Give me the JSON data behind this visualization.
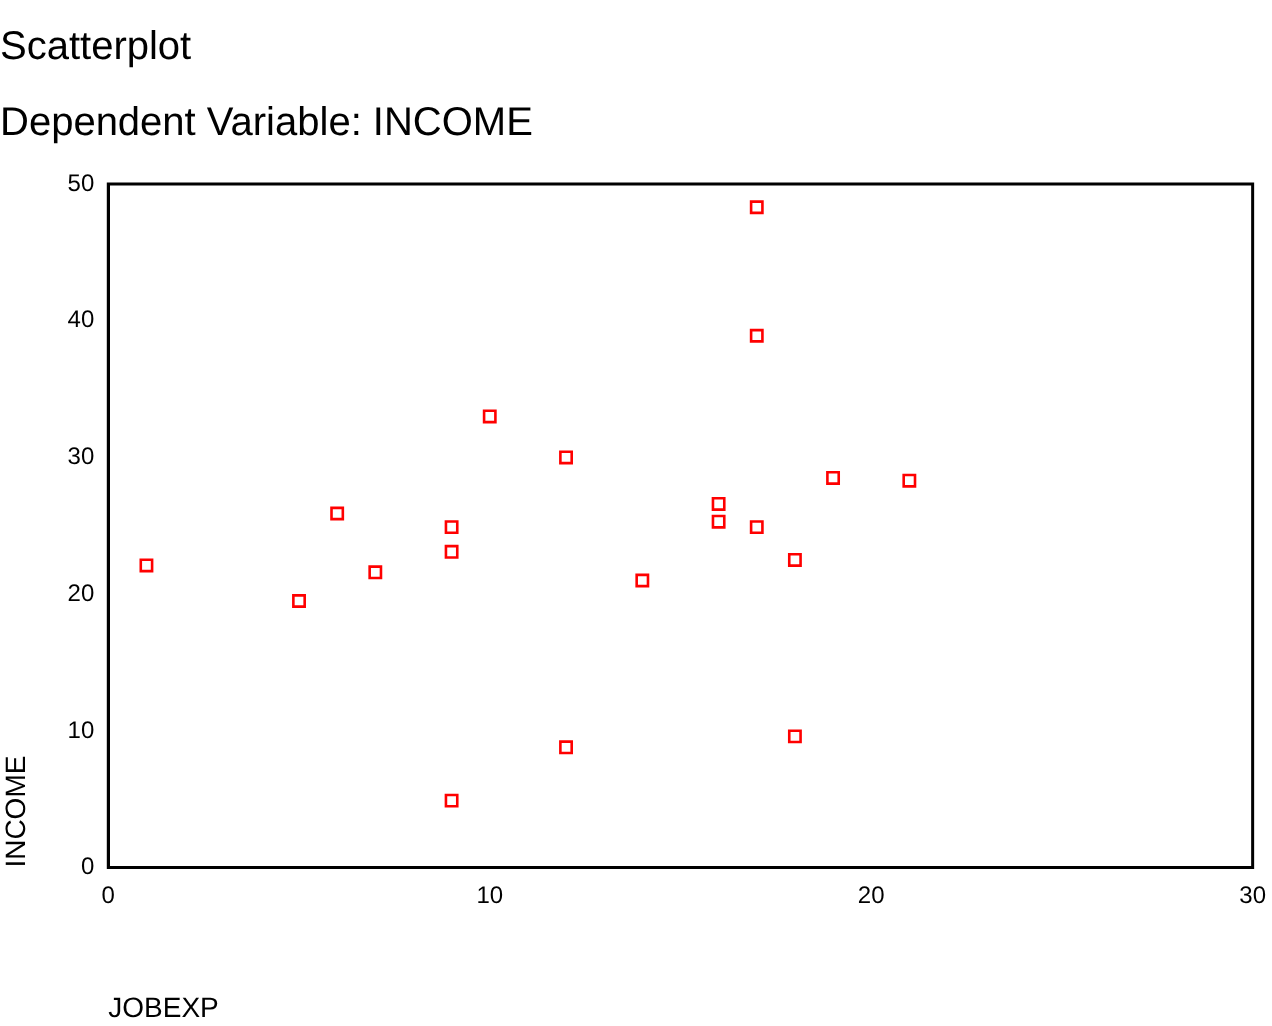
{
  "chart_data": {
    "type": "scatter",
    "title": "Scatterplot",
    "subtitle": "Dependent Variable: INCOME",
    "xlabel": "JOBEXP",
    "ylabel": "INCOME",
    "x": [
      1,
      5,
      6,
      7,
      9,
      9,
      9,
      10,
      12,
      12,
      14,
      17,
      17,
      16,
      16,
      17,
      18,
      18,
      19,
      21
    ],
    "values": [
      22.1,
      19.5,
      25.9,
      21.6,
      24.9,
      23.1,
      4.9,
      33.0,
      30.0,
      8.8,
      21.0,
      48.3,
      38.9,
      26.6,
      25.3,
      24.9,
      22.5,
      9.6,
      28.5,
      28.3
    ],
    "color": "#ff0000",
    "marker": "square",
    "grid": false,
    "legend": false,
    "xlim": [
      0,
      30
    ],
    "xticks": [
      0,
      10,
      20,
      30
    ],
    "ylim": [
      0,
      50
    ],
    "yticks": [
      0,
      10,
      20,
      30,
      40,
      50
    ]
  }
}
